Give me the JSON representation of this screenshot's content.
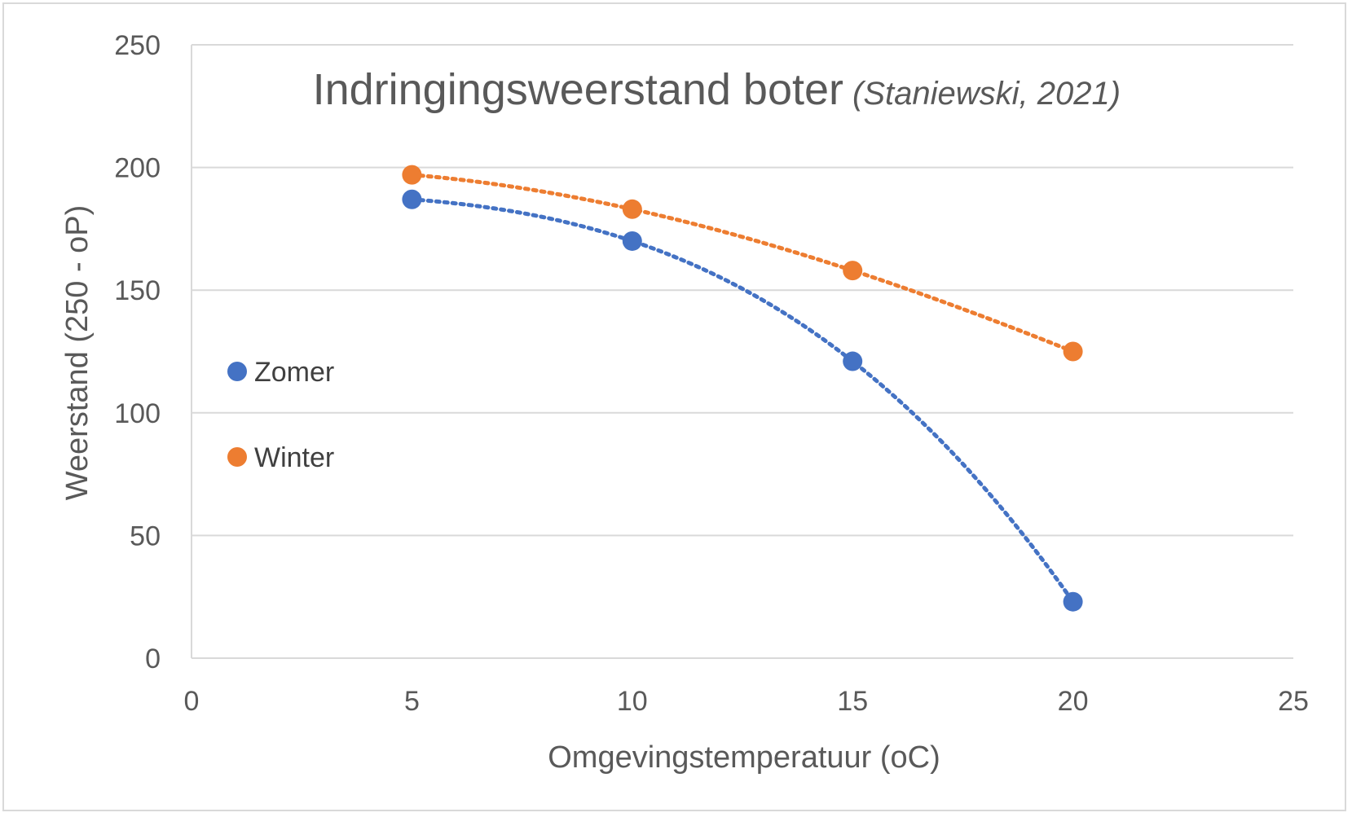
{
  "chart_data": {
    "type": "scatter",
    "title": "Indringingsweerstand boter",
    "subtitle": "(Staniewski, 2021)",
    "xlabel": "Omgevingstemperatuur (oC)",
    "ylabel": "Weerstand (250 - oP)",
    "xlim": [
      0,
      25
    ],
    "ylim": [
      0,
      250
    ],
    "x_ticks": [
      "0",
      "5",
      "10",
      "15",
      "20",
      "25"
    ],
    "y_ticks": [
      "0",
      "50",
      "100",
      "150",
      "200",
      "250"
    ],
    "grid": true,
    "legend_position": "left",
    "trendline": "polynomial, dotted",
    "series": [
      {
        "name": "Zomer",
        "color": "#4472c4",
        "x": [
          5,
          10,
          15,
          20
        ],
        "y": [
          187,
          170,
          121,
          23
        ]
      },
      {
        "name": "Winter",
        "color": "#ed7d31",
        "x": [
          5,
          10,
          15,
          20
        ],
        "y": [
          197,
          183,
          158,
          125
        ]
      }
    ]
  }
}
